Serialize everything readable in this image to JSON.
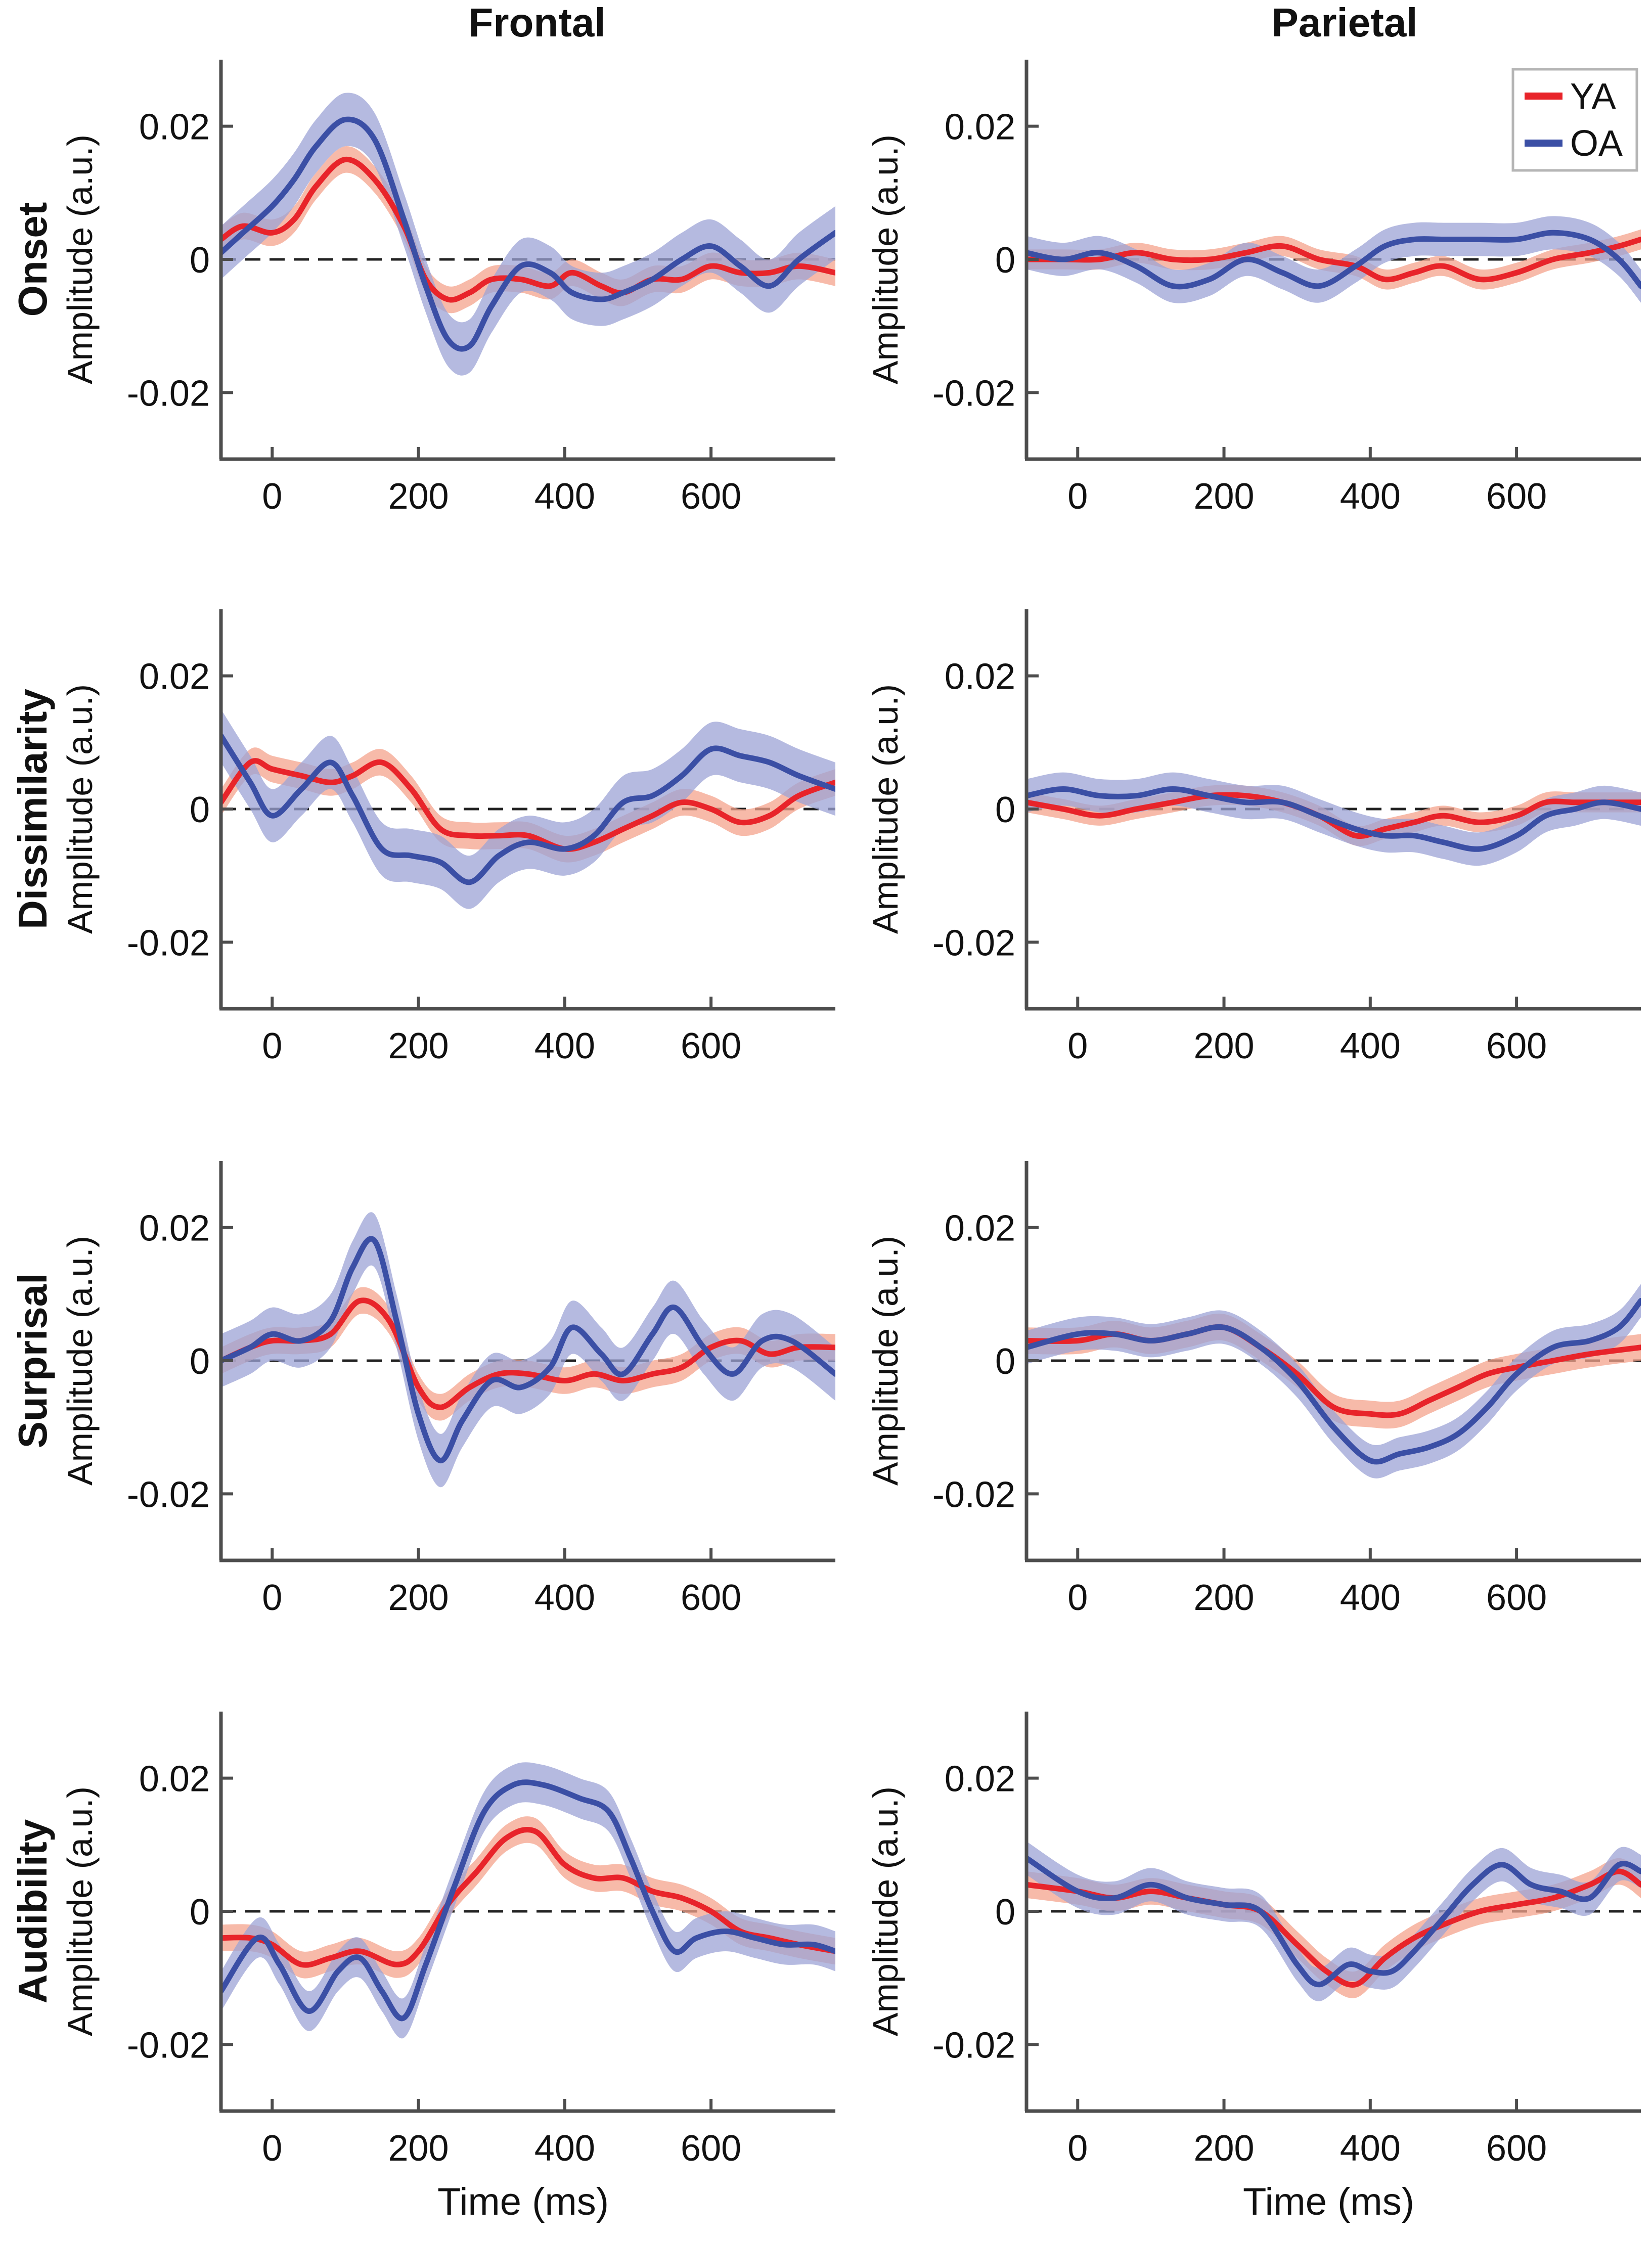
{
  "figure": {
    "column_titles": [
      "Frontal",
      "Parietal"
    ],
    "row_labels": [
      "Onset",
      "Dissimilarity",
      "Surprisal",
      "Audibility"
    ],
    "ylabel": "Amplitude (a.u.)",
    "xlabel": "Time (ms)",
    "legend": {
      "position": "top-right of Parietal Onset panel",
      "entries": [
        "YA",
        "OA"
      ]
    }
  },
  "colors": {
    "YA": "#e8242a",
    "YA_band": "#f4a38c",
    "OA": "#3b4fa5",
    "OA_band": "#9ca3d6",
    "axis": "#4d4d4d",
    "zero_line": "#222222"
  },
  "chart_data": [
    {
      "type": "line",
      "row": "Onset",
      "column": "Frontal",
      "xlim": [
        -70,
        770
      ],
      "ylim": [
        -0.03,
        0.03
      ],
      "xticks": [
        0,
        200,
        400,
        600
      ],
      "yticks": [
        -0.02,
        0,
        0.02
      ],
      "ytick_labels": [
        "-0.02",
        "0",
        "0.02"
      ],
      "series": [
        {
          "name": "YA",
          "x": [
            -70,
            -40,
            0,
            30,
            60,
            100,
            140,
            180,
            210,
            240,
            270,
            300,
            340,
            380,
            410,
            450,
            480,
            520,
            560,
            600,
            640,
            680,
            720,
            770
          ],
          "y": [
            0.003,
            0.005,
            0.004,
            0.006,
            0.011,
            0.015,
            0.012,
            0.005,
            -0.003,
            -0.006,
            -0.005,
            -0.003,
            -0.003,
            -0.004,
            -0.002,
            -0.004,
            -0.005,
            -0.003,
            -0.003,
            -0.001,
            -0.002,
            -0.002,
            -0.001,
            -0.002
          ],
          "band": 0.002
        },
        {
          "name": "OA",
          "x": [
            -70,
            -40,
            0,
            30,
            60,
            100,
            140,
            180,
            210,
            240,
            270,
            300,
            340,
            380,
            410,
            450,
            480,
            520,
            560,
            600,
            640,
            680,
            720,
            770
          ],
          "y": [
            0.001,
            0.004,
            0.008,
            0.012,
            0.017,
            0.021,
            0.018,
            0.006,
            -0.004,
            -0.012,
            -0.013,
            -0.007,
            -0.001,
            -0.002,
            -0.005,
            -0.006,
            -0.005,
            -0.003,
            0.0,
            0.002,
            -0.001,
            -0.004,
            0.0,
            0.004
          ],
          "band": 0.004
        }
      ]
    },
    {
      "type": "line",
      "row": "Onset",
      "column": "Parietal",
      "xlim": [
        -70,
        770
      ],
      "ylim": [
        -0.03,
        0.03
      ],
      "xticks": [
        0,
        200,
        400,
        600
      ],
      "yticks": [
        -0.02,
        0,
        0.02
      ],
      "ytick_labels": [
        "-0.02",
        "0",
        "0.02"
      ],
      "series": [
        {
          "name": "YA",
          "x": [
            -70,
            -20,
            30,
            80,
            130,
            180,
            230,
            280,
            330,
            380,
            420,
            460,
            500,
            550,
            600,
            650,
            700,
            740,
            770
          ],
          "y": [
            0.0,
            0.0,
            0.0,
            0.001,
            0.0,
            0.0,
            0.001,
            0.002,
            0.0,
            -0.001,
            -0.003,
            -0.002,
            -0.001,
            -0.003,
            -0.002,
            0.0,
            0.001,
            0.002,
            0.003
          ],
          "band": 0.0015
        },
        {
          "name": "OA",
          "x": [
            -70,
            -20,
            30,
            80,
            130,
            180,
            230,
            280,
            330,
            380,
            420,
            460,
            500,
            550,
            600,
            650,
            700,
            740,
            770
          ],
          "y": [
            0.001,
            0.0,
            0.001,
            -0.001,
            -0.004,
            -0.003,
            0.0,
            -0.002,
            -0.004,
            -0.001,
            0.002,
            0.003,
            0.003,
            0.003,
            0.003,
            0.004,
            0.003,
            0.0,
            -0.004
          ],
          "band": 0.0025
        }
      ]
    },
    {
      "type": "line",
      "row": "Dissimilarity",
      "column": "Frontal",
      "xlim": [
        -70,
        770
      ],
      "ylim": [
        -0.03,
        0.03
      ],
      "xticks": [
        0,
        200,
        400,
        600
      ],
      "yticks": [
        -0.02,
        0,
        0.02
      ],
      "ytick_labels": [
        "-0.02",
        "0",
        "0.02"
      ],
      "series": [
        {
          "name": "YA",
          "x": [
            -70,
            -30,
            0,
            40,
            80,
            110,
            150,
            190,
            230,
            270,
            310,
            350,
            400,
            440,
            480,
            520,
            560,
            600,
            640,
            680,
            720,
            770
          ],
          "y": [
            0.001,
            0.007,
            0.006,
            0.005,
            0.004,
            0.005,
            0.007,
            0.003,
            -0.003,
            -0.004,
            -0.004,
            -0.004,
            -0.006,
            -0.005,
            -0.003,
            -0.001,
            0.001,
            0.0,
            -0.002,
            -0.001,
            0.002,
            0.004
          ],
          "band": 0.002
        },
        {
          "name": "OA",
          "x": [
            -70,
            -30,
            0,
            40,
            80,
            110,
            150,
            190,
            230,
            270,
            310,
            350,
            400,
            440,
            480,
            520,
            560,
            600,
            640,
            680,
            720,
            770
          ],
          "y": [
            0.011,
            0.004,
            -0.001,
            0.003,
            0.007,
            0.002,
            -0.006,
            -0.007,
            -0.008,
            -0.011,
            -0.007,
            -0.005,
            -0.006,
            -0.004,
            0.001,
            0.002,
            0.005,
            0.009,
            0.008,
            0.007,
            0.005,
            0.003
          ],
          "band": 0.004
        }
      ]
    },
    {
      "type": "line",
      "row": "Dissimilarity",
      "column": "Parietal",
      "xlim": [
        -70,
        770
      ],
      "ylim": [
        -0.03,
        0.03
      ],
      "xticks": [
        0,
        200,
        400,
        600
      ],
      "yticks": [
        -0.02,
        0,
        0.02
      ],
      "ytick_labels": [
        "-0.02",
        "0",
        "0.02"
      ],
      "series": [
        {
          "name": "YA",
          "x": [
            -70,
            -20,
            30,
            80,
            130,
            180,
            230,
            280,
            330,
            380,
            420,
            460,
            500,
            550,
            600,
            640,
            680,
            720,
            770
          ],
          "y": [
            0.001,
            0.0,
            -0.001,
            0.0,
            0.001,
            0.002,
            0.002,
            0.001,
            -0.001,
            -0.004,
            -0.003,
            -0.002,
            -0.001,
            -0.002,
            -0.001,
            0.001,
            0.001,
            0.001,
            0.001
          ],
          "band": 0.0015
        },
        {
          "name": "OA",
          "x": [
            -70,
            -20,
            30,
            80,
            130,
            180,
            230,
            280,
            330,
            380,
            420,
            460,
            500,
            550,
            600,
            640,
            680,
            720,
            770
          ],
          "y": [
            0.002,
            0.003,
            0.002,
            0.002,
            0.003,
            0.002,
            0.001,
            0.001,
            -0.001,
            -0.003,
            -0.004,
            -0.004,
            -0.005,
            -0.006,
            -0.004,
            -0.001,
            0.0,
            0.001,
            0.0
          ],
          "band": 0.0025
        }
      ]
    },
    {
      "type": "line",
      "row": "Surprisal",
      "column": "Frontal",
      "xlim": [
        -70,
        770
      ],
      "ylim": [
        -0.03,
        0.03
      ],
      "xticks": [
        0,
        200,
        400,
        600
      ],
      "yticks": [
        -0.02,
        0,
        0.02
      ],
      "ytick_labels": [
        "-0.02",
        "0",
        "0.02"
      ],
      "series": [
        {
          "name": "YA",
          "x": [
            -70,
            -30,
            0,
            40,
            80,
            120,
            160,
            200,
            230,
            270,
            310,
            350,
            400,
            440,
            480,
            520,
            560,
            600,
            640,
            680,
            720,
            770
          ],
          "y": [
            0.0,
            0.002,
            0.003,
            0.003,
            0.004,
            0.009,
            0.006,
            -0.004,
            -0.007,
            -0.004,
            -0.002,
            -0.002,
            -0.003,
            -0.002,
            -0.003,
            -0.002,
            -0.001,
            0.002,
            0.003,
            0.001,
            0.002,
            0.002
          ],
          "band": 0.002
        },
        {
          "name": "OA",
          "x": [
            -70,
            -30,
            0,
            40,
            80,
            110,
            140,
            170,
            200,
            230,
            260,
            300,
            340,
            380,
            410,
            450,
            480,
            520,
            550,
            590,
            630,
            670,
            710,
            770
          ],
          "y": [
            0.0,
            0.002,
            0.004,
            0.003,
            0.006,
            0.014,
            0.018,
            0.006,
            -0.008,
            -0.015,
            -0.009,
            -0.003,
            -0.004,
            -0.001,
            0.005,
            0.001,
            -0.002,
            0.004,
            0.008,
            0.002,
            -0.002,
            0.003,
            0.003,
            -0.002
          ],
          "band": 0.004
        }
      ]
    },
    {
      "type": "line",
      "row": "Surprisal",
      "column": "Parietal",
      "xlim": [
        -70,
        770
      ],
      "ylim": [
        -0.03,
        0.03
      ],
      "xticks": [
        0,
        200,
        400,
        600
      ],
      "yticks": [
        -0.02,
        0,
        0.02
      ],
      "ytick_labels": [
        "-0.02",
        "0",
        "0.02"
      ],
      "series": [
        {
          "name": "YA",
          "x": [
            -70,
            0,
            50,
            100,
            150,
            200,
            250,
            300,
            350,
            400,
            440,
            480,
            520,
            560,
            600,
            650,
            700,
            770
          ],
          "y": [
            0.003,
            0.003,
            0.004,
            0.003,
            0.004,
            0.005,
            0.002,
            -0.002,
            -0.007,
            -0.008,
            -0.008,
            -0.006,
            -0.004,
            -0.002,
            -0.001,
            0.0,
            0.001,
            0.002
          ],
          "band": 0.002
        },
        {
          "name": "OA",
          "x": [
            -70,
            0,
            50,
            100,
            150,
            200,
            250,
            300,
            350,
            400,
            440,
            480,
            520,
            560,
            600,
            650,
            700,
            740,
            770
          ],
          "y": [
            0.002,
            0.004,
            0.004,
            0.003,
            0.004,
            0.005,
            0.002,
            -0.003,
            -0.01,
            -0.015,
            -0.014,
            -0.013,
            -0.011,
            -0.007,
            -0.002,
            0.002,
            0.003,
            0.005,
            0.009
          ],
          "band": 0.0025
        }
      ]
    },
    {
      "type": "line",
      "row": "Audibility",
      "column": "Frontal",
      "xlim": [
        -70,
        770
      ],
      "ylim": [
        -0.03,
        0.03
      ],
      "xticks": [
        0,
        200,
        400,
        600
      ],
      "yticks": [
        -0.02,
        0,
        0.02
      ],
      "ytick_labels": [
        "-0.02",
        "0",
        "0.02"
      ],
      "series": [
        {
          "name": "YA",
          "x": [
            -70,
            -30,
            0,
            40,
            80,
            120,
            170,
            200,
            240,
            280,
            320,
            360,
            400,
            440,
            480,
            520,
            560,
            600,
            640,
            680,
            720,
            770
          ],
          "y": [
            -0.004,
            -0.004,
            -0.005,
            -0.008,
            -0.007,
            -0.006,
            -0.008,
            -0.006,
            0.001,
            0.006,
            0.011,
            0.012,
            0.007,
            0.005,
            0.005,
            0.003,
            0.002,
            0.0,
            -0.003,
            -0.004,
            -0.005,
            -0.006
          ],
          "band": 0.002
        },
        {
          "name": "OA",
          "x": [
            -70,
            -20,
            10,
            50,
            90,
            120,
            150,
            180,
            210,
            250,
            290,
            330,
            370,
            420,
            460,
            490,
            520,
            550,
            580,
            620,
            660,
            700,
            740,
            770
          ],
          "y": [
            -0.012,
            -0.004,
            -0.008,
            -0.015,
            -0.009,
            -0.007,
            -0.012,
            -0.016,
            -0.008,
            0.004,
            0.015,
            0.019,
            0.019,
            0.017,
            0.015,
            0.008,
            0.0,
            -0.006,
            -0.004,
            -0.003,
            -0.004,
            -0.005,
            -0.005,
            -0.006
          ],
          "band": 0.003
        }
      ]
    },
    {
      "type": "line",
      "row": "Audibility",
      "column": "Parietal",
      "xlim": [
        -70,
        770
      ],
      "ylim": [
        -0.03,
        0.03
      ],
      "xticks": [
        0,
        200,
        400,
        600
      ],
      "yticks": [
        -0.02,
        0,
        0.02
      ],
      "ytick_labels": [
        "-0.02",
        "0",
        "0.02"
      ],
      "series": [
        {
          "name": "YA",
          "x": [
            -70,
            0,
            50,
            100,
            150,
            200,
            250,
            300,
            340,
            380,
            420,
            460,
            500,
            550,
            600,
            650,
            700,
            740,
            770
          ],
          "y": [
            0.004,
            0.003,
            0.002,
            0.003,
            0.002,
            0.001,
            0.0,
            -0.005,
            -0.009,
            -0.011,
            -0.007,
            -0.004,
            -0.002,
            0.0,
            0.001,
            0.002,
            0.004,
            0.006,
            0.004
          ],
          "band": 0.002
        },
        {
          "name": "OA",
          "x": [
            -70,
            0,
            50,
            100,
            150,
            200,
            250,
            300,
            330,
            370,
            400,
            430,
            460,
            500,
            540,
            580,
            620,
            660,
            700,
            740,
            770
          ],
          "y": [
            0.008,
            0.003,
            0.002,
            0.004,
            0.002,
            0.001,
            0.0,
            -0.008,
            -0.011,
            -0.008,
            -0.009,
            -0.009,
            -0.006,
            -0.001,
            0.004,
            0.007,
            0.004,
            0.003,
            0.002,
            0.007,
            0.006
          ],
          "band": 0.0025
        }
      ]
    }
  ]
}
